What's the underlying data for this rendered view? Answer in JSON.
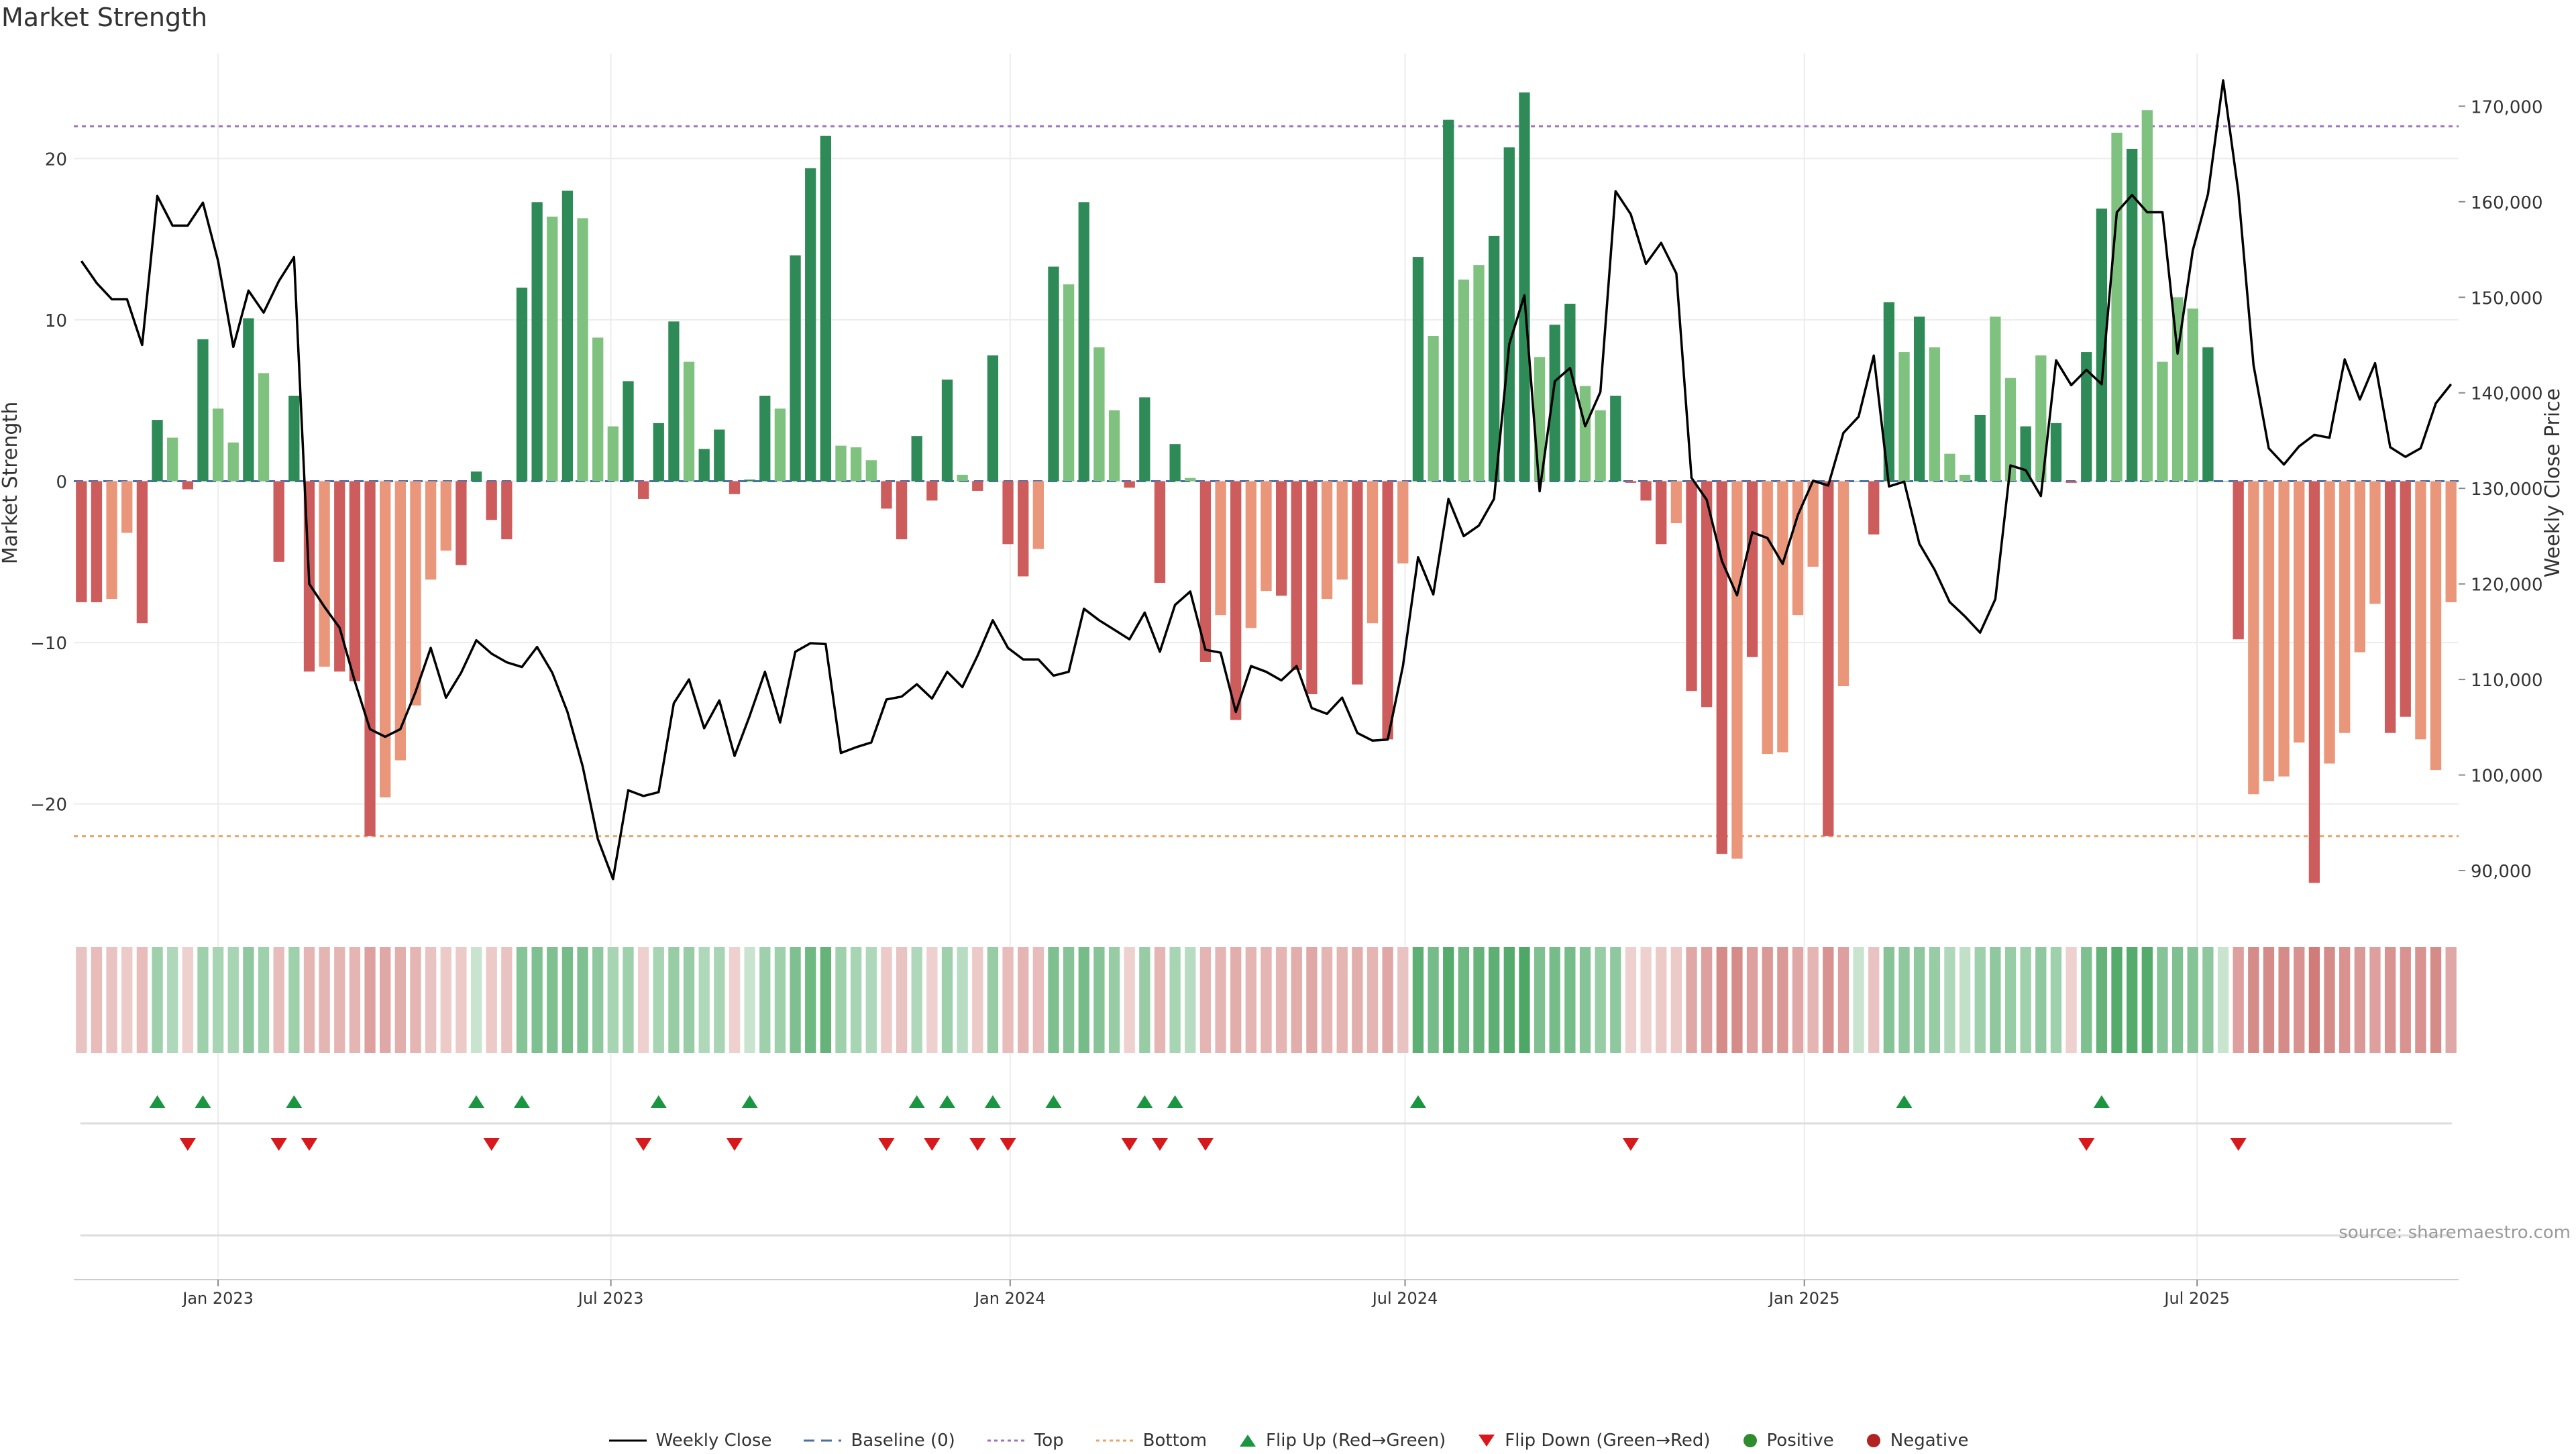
{
  "title": "Market Strength",
  "source_label": "source: sharemaestro.com",
  "colors": {
    "strong_green": "#2e8b57",
    "light_green": "#7fc27f",
    "strong_red": "#cd5c5c",
    "light_red": "#e9967a",
    "price_line": "#000000",
    "baseline": "#4a6fa5",
    "top": "#a070c0",
    "bottom": "#f0a060",
    "flip_up": "#1a9641",
    "flip_down": "#d7191c",
    "positive": "#2e8b2e",
    "negative": "#b22222"
  },
  "legend": [
    {
      "key": "weekly-close",
      "label": "Weekly Close",
      "kind": "line"
    },
    {
      "key": "baseline",
      "label": "Baseline (0)",
      "kind": "dash"
    },
    {
      "key": "top",
      "label": "Top",
      "kind": "dot-purple"
    },
    {
      "key": "bottom",
      "label": "Bottom",
      "kind": "dot-orange"
    },
    {
      "key": "flip-up",
      "label": "Flip Up (Red→Green)",
      "kind": "tri-up"
    },
    {
      "key": "flip-down",
      "label": "Flip Down (Green→Red)",
      "kind": "tri-down"
    },
    {
      "key": "positive",
      "label": "Positive",
      "kind": "dot-green"
    },
    {
      "key": "negative",
      "label": "Negative",
      "kind": "dot-red"
    }
  ],
  "chart_data": {
    "type": "bar",
    "xlabel": "",
    "ylabel": "Market Strength",
    "y2label": "Weekly Close Price",
    "ylim": [
      -26.5,
      26.5
    ],
    "y_ticks": [
      -20,
      -10,
      0,
      10,
      20
    ],
    "y_tick_labels": [
      "−20",
      "−10",
      "0",
      "10",
      "20"
    ],
    "y2lim": [
      86000,
      175500
    ],
    "y2_ticks": [
      90000,
      100000,
      110000,
      120000,
      130000,
      140000,
      150000,
      160000,
      170000
    ],
    "y2_tick_labels": [
      "90,000",
      "100,000",
      "110,000",
      "120,000",
      "130,000",
      "140,000",
      "150,000",
      "160,000",
      "170,000"
    ],
    "x_start": "2022-10-30",
    "x_ticks": [
      {
        "date": "2023-01-01",
        "label": "Jan 2023"
      },
      {
        "date": "2023-07-01",
        "label": "Jul 2023"
      },
      {
        "date": "2024-01-01",
        "label": "Jan 2024"
      },
      {
        "date": "2024-07-01",
        "label": "Jul 2024"
      },
      {
        "date": "2025-01-01",
        "label": "Jan 2025"
      },
      {
        "date": "2025-07-01",
        "label": "Jul 2025"
      }
    ],
    "top_level": 22,
    "bottom_level": -22,
    "strength": [
      -7.5,
      -7.5,
      -7.3,
      -3.2,
      -8.8,
      3.8,
      2.7,
      -0.5,
      8.8,
      4.5,
      2.4,
      10.1,
      6.7,
      -5,
      5.3,
      -11.8,
      -11.5,
      -11.8,
      -12.4,
      -22,
      -19.6,
      -17.3,
      -13.9,
      -6.1,
      -4.3,
      -5.2,
      0.6,
      -2.4,
      -3.6,
      12,
      17.3,
      16.4,
      18,
      16.3,
      8.9,
      3.4,
      6.2,
      -1.1,
      3.6,
      9.9,
      7.4,
      2,
      3.2,
      -0.8,
      0.1,
      5.3,
      4.5,
      14,
      19.4,
      21.4,
      2.2,
      2.1,
      1.3,
      -1.7,
      -3.6,
      2.8,
      -1.2,
      6.3,
      0.4,
      -0.6,
      7.8,
      -3.9,
      -5.9,
      -4.2,
      13.3,
      12.2,
      17.3,
      8.3,
      4.4,
      -0.4,
      5.2,
      -6.3,
      2.3,
      0.2,
      -11.2,
      -8.3,
      -14.8,
      -9.1,
      -6.8,
      -7.1,
      -11.7,
      -13.2,
      -7.3,
      -6.1,
      -12.6,
      -8.8,
      -16,
      -5.1,
      13.9,
      9,
      22.4,
      12.5,
      13.4,
      15.2,
      20.7,
      24.1,
      7.7,
      9.7,
      11,
      5.9,
      4.4,
      5.3,
      -0.1,
      -1.2,
      -3.9,
      -2.6,
      -13,
      -14,
      -23.1,
      -23.4,
      -10.9,
      -16.9,
      -16.8,
      -8.3,
      -5.3,
      -22,
      -12.7,
      0,
      -3.3,
      11.1,
      8,
      10.2,
      8.3,
      1.7,
      0.4,
      4.1,
      10.2,
      6.4,
      3.4,
      7.8,
      3.6,
      -0.1,
      8,
      16.9,
      21.6,
      20.6,
      23,
      7.4,
      11.4,
      10.7,
      8.3,
      0,
      -9.8,
      -19.4,
      -18.6,
      -18.3,
      -16.2,
      -24.9,
      -17.5,
      -15.6,
      -10.6,
      -7.6,
      -15.6,
      -14.6,
      -16,
      -17.9,
      -7.5
    ],
    "strength_style": [
      "s",
      "s",
      "l",
      "l",
      "s",
      "s",
      "l",
      "s",
      "s",
      "l",
      "l",
      "s",
      "l",
      "s",
      "s",
      "s",
      "l",
      "s",
      "s",
      "s",
      "l",
      "l",
      "l",
      "l",
      "l",
      "s",
      "s",
      "s",
      "s",
      "s",
      "s",
      "l",
      "s",
      "l",
      "l",
      "l",
      "s",
      "s",
      "s",
      "s",
      "l",
      "s",
      "s",
      "s",
      "s",
      "s",
      "l",
      "s",
      "s",
      "s",
      "l",
      "l",
      "l",
      "s",
      "s",
      "s",
      "s",
      "s",
      "l",
      "s",
      "s",
      "s",
      "s",
      "l",
      "s",
      "l",
      "s",
      "l",
      "l",
      "s",
      "s",
      "s",
      "s",
      "l",
      "s",
      "l",
      "s",
      "l",
      "l",
      "s",
      "s",
      "s",
      "l",
      "l",
      "s",
      "l",
      "s",
      "l",
      "s",
      "l",
      "s",
      "l",
      "l",
      "s",
      "s",
      "s",
      "l",
      "s",
      "s",
      "l",
      "l",
      "s",
      "s",
      "s",
      "s",
      "l",
      "s",
      "s",
      "s",
      "l",
      "s",
      "l",
      "l",
      "l",
      "l",
      "s",
      "l",
      "s",
      "s",
      "s",
      "l",
      "s",
      "l",
      "l",
      "l",
      "s",
      "l",
      "l",
      "s",
      "l",
      "s",
      "s",
      "s",
      "s",
      "l",
      "s",
      "l",
      "l",
      "l",
      "l",
      "s",
      "s",
      "s",
      "l",
      "l",
      "l",
      "l",
      "s",
      "l",
      "l",
      "l",
      "l",
      "s",
      "s",
      "l"
    ],
    "weekly_close": [
      153800,
      151500,
      149800,
      149800,
      145000,
      160600,
      157500,
      157500,
      159900,
      153800,
      144800,
      150700,
      148400,
      151700,
      154200,
      120000,
      117600,
      115400,
      109800,
      104800,
      104000,
      104800,
      108700,
      113300,
      108100,
      110700,
      114100,
      112700,
      111800,
      111300,
      113400,
      110700,
      106600,
      100900,
      93300,
      89100,
      98400,
      97800,
      98200,
      107500,
      110000,
      104900,
      107800,
      102000,
      106200,
      110800,
      105500,
      112900,
      113800,
      113700,
      102300,
      102900,
      103400,
      107900,
      108200,
      109500,
      108000,
      110800,
      109200,
      112500,
      116200,
      113300,
      112100,
      112100,
      110400,
      110800,
      117400,
      116200,
      115200,
      114200,
      117000,
      112900,
      117800,
      119200,
      113100,
      112800,
      106600,
      111400,
      110800,
      109900,
      111400,
      107000,
      106400,
      108100,
      104400,
      103600,
      103700,
      111400,
      122800,
      118900,
      128900,
      125000,
      126100,
      128900,
      145100,
      150200,
      129700,
      141200,
      142600,
      136500,
      140100,
      161100,
      158700,
      153500,
      155700,
      152500,
      131100,
      128800,
      122400,
      118800,
      125400,
      124800,
      122100,
      127200,
      130800,
      130300,
      135800,
      137500,
      143900,
      130200,
      130700,
      124200,
      121500,
      118100,
      116600,
      114900,
      118400,
      132400,
      131900,
      129200,
      143400,
      140800,
      142400,
      140900,
      158900,
      160700,
      158900,
      158900,
      144100,
      154900,
      160800,
      172700,
      161000,
      142900,
      134200,
      132500,
      134400,
      135600,
      135300,
      143500,
      139300,
      143100,
      134300,
      133300,
      134200,
      138900,
      140900
    ],
    "band_shade": [
      0.2,
      0.25,
      0.2,
      0.15,
      0.25,
      0.35,
      0.25,
      0.1,
      0.35,
      0.3,
      0.3,
      0.45,
      0.35,
      0.25,
      0.35,
      0.3,
      0.3,
      0.3,
      0.3,
      0.45,
      0.4,
      0.35,
      0.3,
      0.2,
      0.15,
      0.15,
      0.1,
      0.15,
      0.2,
      0.5,
      0.55,
      0.55,
      0.6,
      0.55,
      0.45,
      0.3,
      0.35,
      0.1,
      0.3,
      0.4,
      0.4,
      0.25,
      0.3,
      0.1,
      0.1,
      0.35,
      0.35,
      0.55,
      0.65,
      0.7,
      0.35,
      0.3,
      0.25,
      0.15,
      0.2,
      0.25,
      0.1,
      0.35,
      0.2,
      0.15,
      0.4,
      0.25,
      0.3,
      0.25,
      0.55,
      0.5,
      0.6,
      0.5,
      0.4,
      0.1,
      0.4,
      0.3,
      0.3,
      0.2,
      0.3,
      0.3,
      0.35,
      0.3,
      0.3,
      0.3,
      0.35,
      0.4,
      0.3,
      0.3,
      0.35,
      0.3,
      0.4,
      0.2,
      0.75,
      0.6,
      0.8,
      0.65,
      0.7,
      0.75,
      0.8,
      0.85,
      0.55,
      0.6,
      0.6,
      0.5,
      0.4,
      0.45,
      0.1,
      0.1,
      0.15,
      0.15,
      0.4,
      0.45,
      0.6,
      0.6,
      0.45,
      0.5,
      0.5,
      0.4,
      0.3,
      0.55,
      0.45,
      0.1,
      0.2,
      0.5,
      0.45,
      0.45,
      0.4,
      0.25,
      0.15,
      0.35,
      0.45,
      0.4,
      0.35,
      0.45,
      0.35,
      0.1,
      0.55,
      0.7,
      0.8,
      0.8,
      0.8,
      0.5,
      0.55,
      0.5,
      0.45,
      0.1,
      0.45,
      0.6,
      0.6,
      0.6,
      0.55,
      0.7,
      0.6,
      0.55,
      0.5,
      0.45,
      0.55,
      0.55,
      0.55,
      0.6,
      0.4
    ],
    "flip_up": [
      5,
      8,
      14,
      26,
      29,
      38,
      44,
      55,
      57,
      60,
      64,
      70,
      72,
      88,
      120,
      133
    ],
    "flip_down": [
      7,
      13,
      15,
      27,
      37,
      43,
      53,
      56,
      59,
      61,
      69,
      71,
      74,
      102,
      132,
      142
    ]
  }
}
